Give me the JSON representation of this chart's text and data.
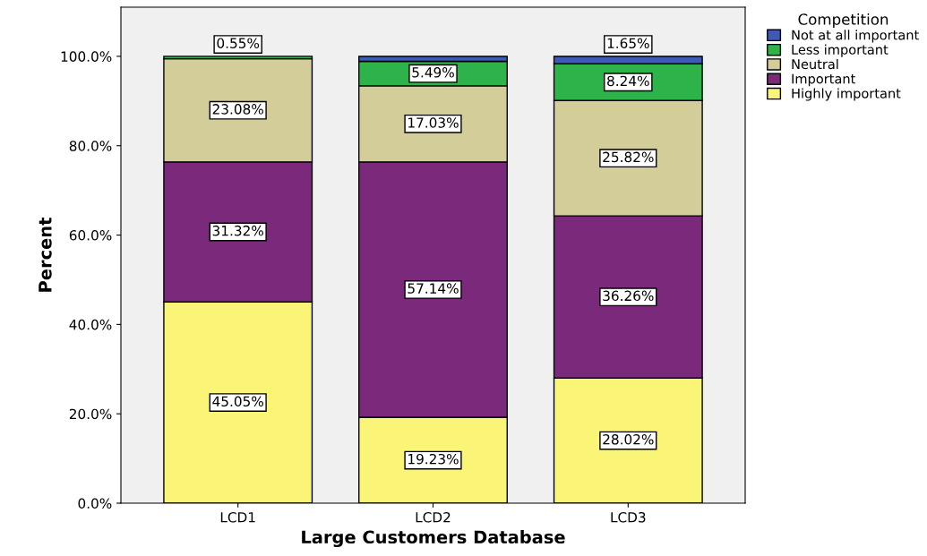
{
  "chart_data": {
    "type": "bar",
    "stacked": true,
    "xlabel": "Large Customers Database",
    "ylabel": "Percent",
    "legend_title": "Competition",
    "legend": "top right",
    "grid": false,
    "categories": [
      "LCD1",
      "LCD2",
      "LCD3"
    ],
    "ylim": [
      0,
      111
    ],
    "yticks": [
      {
        "value": 0,
        "label": "0.0%"
      },
      {
        "value": 20,
        "label": "20.0%"
      },
      {
        "value": 40,
        "label": "40.0%"
      },
      {
        "value": 60,
        "label": "60.0%"
      },
      {
        "value": 80,
        "label": "80.0%"
      },
      {
        "value": 100,
        "label": "100.0%"
      }
    ],
    "series": [
      {
        "name": "Highly important",
        "color": "#fbf577",
        "values": [
          45.05,
          19.23,
          28.02
        ],
        "value_labels": [
          "45.05%",
          "19.23%",
          "28.02%"
        ]
      },
      {
        "name": "Important",
        "color": "#7b2a7b",
        "values": [
          31.32,
          57.14,
          36.26
        ],
        "value_labels": [
          "31.32%",
          "57.14%",
          "36.26%"
        ]
      },
      {
        "name": "Neutral",
        "color": "#d3cd9a",
        "values": [
          23.08,
          17.03,
          25.82
        ],
        "value_labels": [
          "23.08%",
          "17.03%",
          "25.82%"
        ]
      },
      {
        "name": "Less important",
        "color": "#2db34a",
        "values": [
          0.55,
          5.49,
          8.24
        ],
        "value_labels": [
          "0.55%",
          "5.49%",
          "8.24%"
        ]
      },
      {
        "name": "Not at all important",
        "color": "#3d5bb5",
        "values": [
          null,
          1.1,
          1.65
        ],
        "value_labels": [
          null,
          null,
          "1.65%"
        ]
      }
    ]
  }
}
